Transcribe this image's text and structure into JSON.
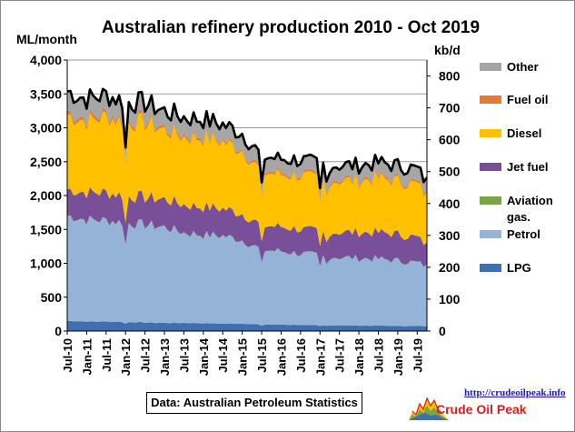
{
  "chart_data": {
    "type": "area",
    "title": "Australian  refinery  production  2010 - Oct 2019",
    "ylabel_left": "ML/month",
    "ylabel_right": "kb/d",
    "ylim": [
      0,
      4000
    ],
    "ylim_right": [
      0,
      850
    ],
    "yticks_left": [
      "0",
      "500",
      "1,000",
      "1,500",
      "2,000",
      "2,500",
      "3,000",
      "3,500",
      "4,000"
    ],
    "yticks_right": [
      "0",
      "100",
      "200",
      "300",
      "400",
      "500",
      "600",
      "700",
      "800"
    ],
    "grid": "horizontal",
    "legend_position": "right",
    "x_start": "Jul-10",
    "x_end": "Oct-19",
    "xticks": [
      "Jul-10",
      "Jan-11",
      "Jul-11",
      "Jan-12",
      "Jul-12",
      "Jan-13",
      "Jul-13",
      "Jan-14",
      "Jul-14",
      "Jan-15",
      "Jul-15",
      "Jan-16",
      "Jul-16",
      "Jan-17",
      "Jul-17",
      "Jan-18",
      "Jul-18",
      "Jan-19",
      "Jul-19"
    ],
    "anchor_months": [
      "Jul-10",
      "Jan-11",
      "Jul-11",
      "Jan-12",
      "Jul-12",
      "Jan-13",
      "Jul-13",
      "Jan-14",
      "Jul-14",
      "Jan-15",
      "Jul-15",
      "Jan-16",
      "Jul-16",
      "Jan-17",
      "Jul-17",
      "Jan-18",
      "Jul-18",
      "Jan-19",
      "Jul-19",
      "Oct-19"
    ],
    "series": [
      {
        "name": "LPG",
        "color": "#3f6fb0",
        "values": [
          150,
          140,
          140,
          135,
          125,
          120,
          120,
          115,
          110,
          110,
          95,
          95,
          90,
          85,
          85,
          80,
          80,
          75,
          75,
          70
        ]
      },
      {
        "name": "Petrol",
        "color": "#95b3d7",
        "values": [
          1550,
          1500,
          1490,
          1460,
          1440,
          1410,
          1330,
          1300,
          1290,
          1230,
          1100,
          1080,
          1050,
          1020,
          1000,
          990,
          980,
          960,
          930,
          880
        ]
      },
      {
        "name": "Aviation gas.",
        "color": "#77a643",
        "values": [
          6,
          6,
          6,
          6,
          6,
          6,
          6,
          6,
          6,
          6,
          5,
          5,
          5,
          5,
          5,
          5,
          5,
          5,
          5,
          5
        ]
      },
      {
        "name": "Jet fuel",
        "color": "#7a4f99",
        "values": [
          390,
          400,
          410,
          400,
          400,
          410,
          410,
          410,
          400,
          390,
          360,
          360,
          360,
          350,
          370,
          380,
          390,
          390,
          370,
          310
        ]
      },
      {
        "name": "Diesel",
        "color": "#ffc000",
        "values": [
          1100,
          1050,
          1120,
          1080,
          1100,
          1020,
          1000,
          1020,
          980,
          940,
          780,
          770,
          790,
          760,
          760,
          760,
          800,
          780,
          780,
          720
        ]
      },
      {
        "name": "Fuel oil",
        "color": "#e07b39",
        "values": [
          55,
          50,
          50,
          45,
          45,
          40,
          40,
          35,
          30,
          30,
          30,
          30,
          30,
          30,
          30,
          30,
          30,
          30,
          30,
          30
        ]
      },
      {
        "name": "Other",
        "color": "#a6a6a6",
        "values": [
          290,
          280,
          270,
          260,
          250,
          240,
          250,
          240,
          230,
          220,
          210,
          200,
          200,
          200,
          200,
          200,
          200,
          200,
          200,
          180
        ]
      }
    ],
    "total_line_color": "#000000",
    "source": "Data: Australian Petroleum Statistics"
  },
  "branding": {
    "url": "http://crudeoilpeak.info",
    "name": "Crude Oil Peak"
  }
}
